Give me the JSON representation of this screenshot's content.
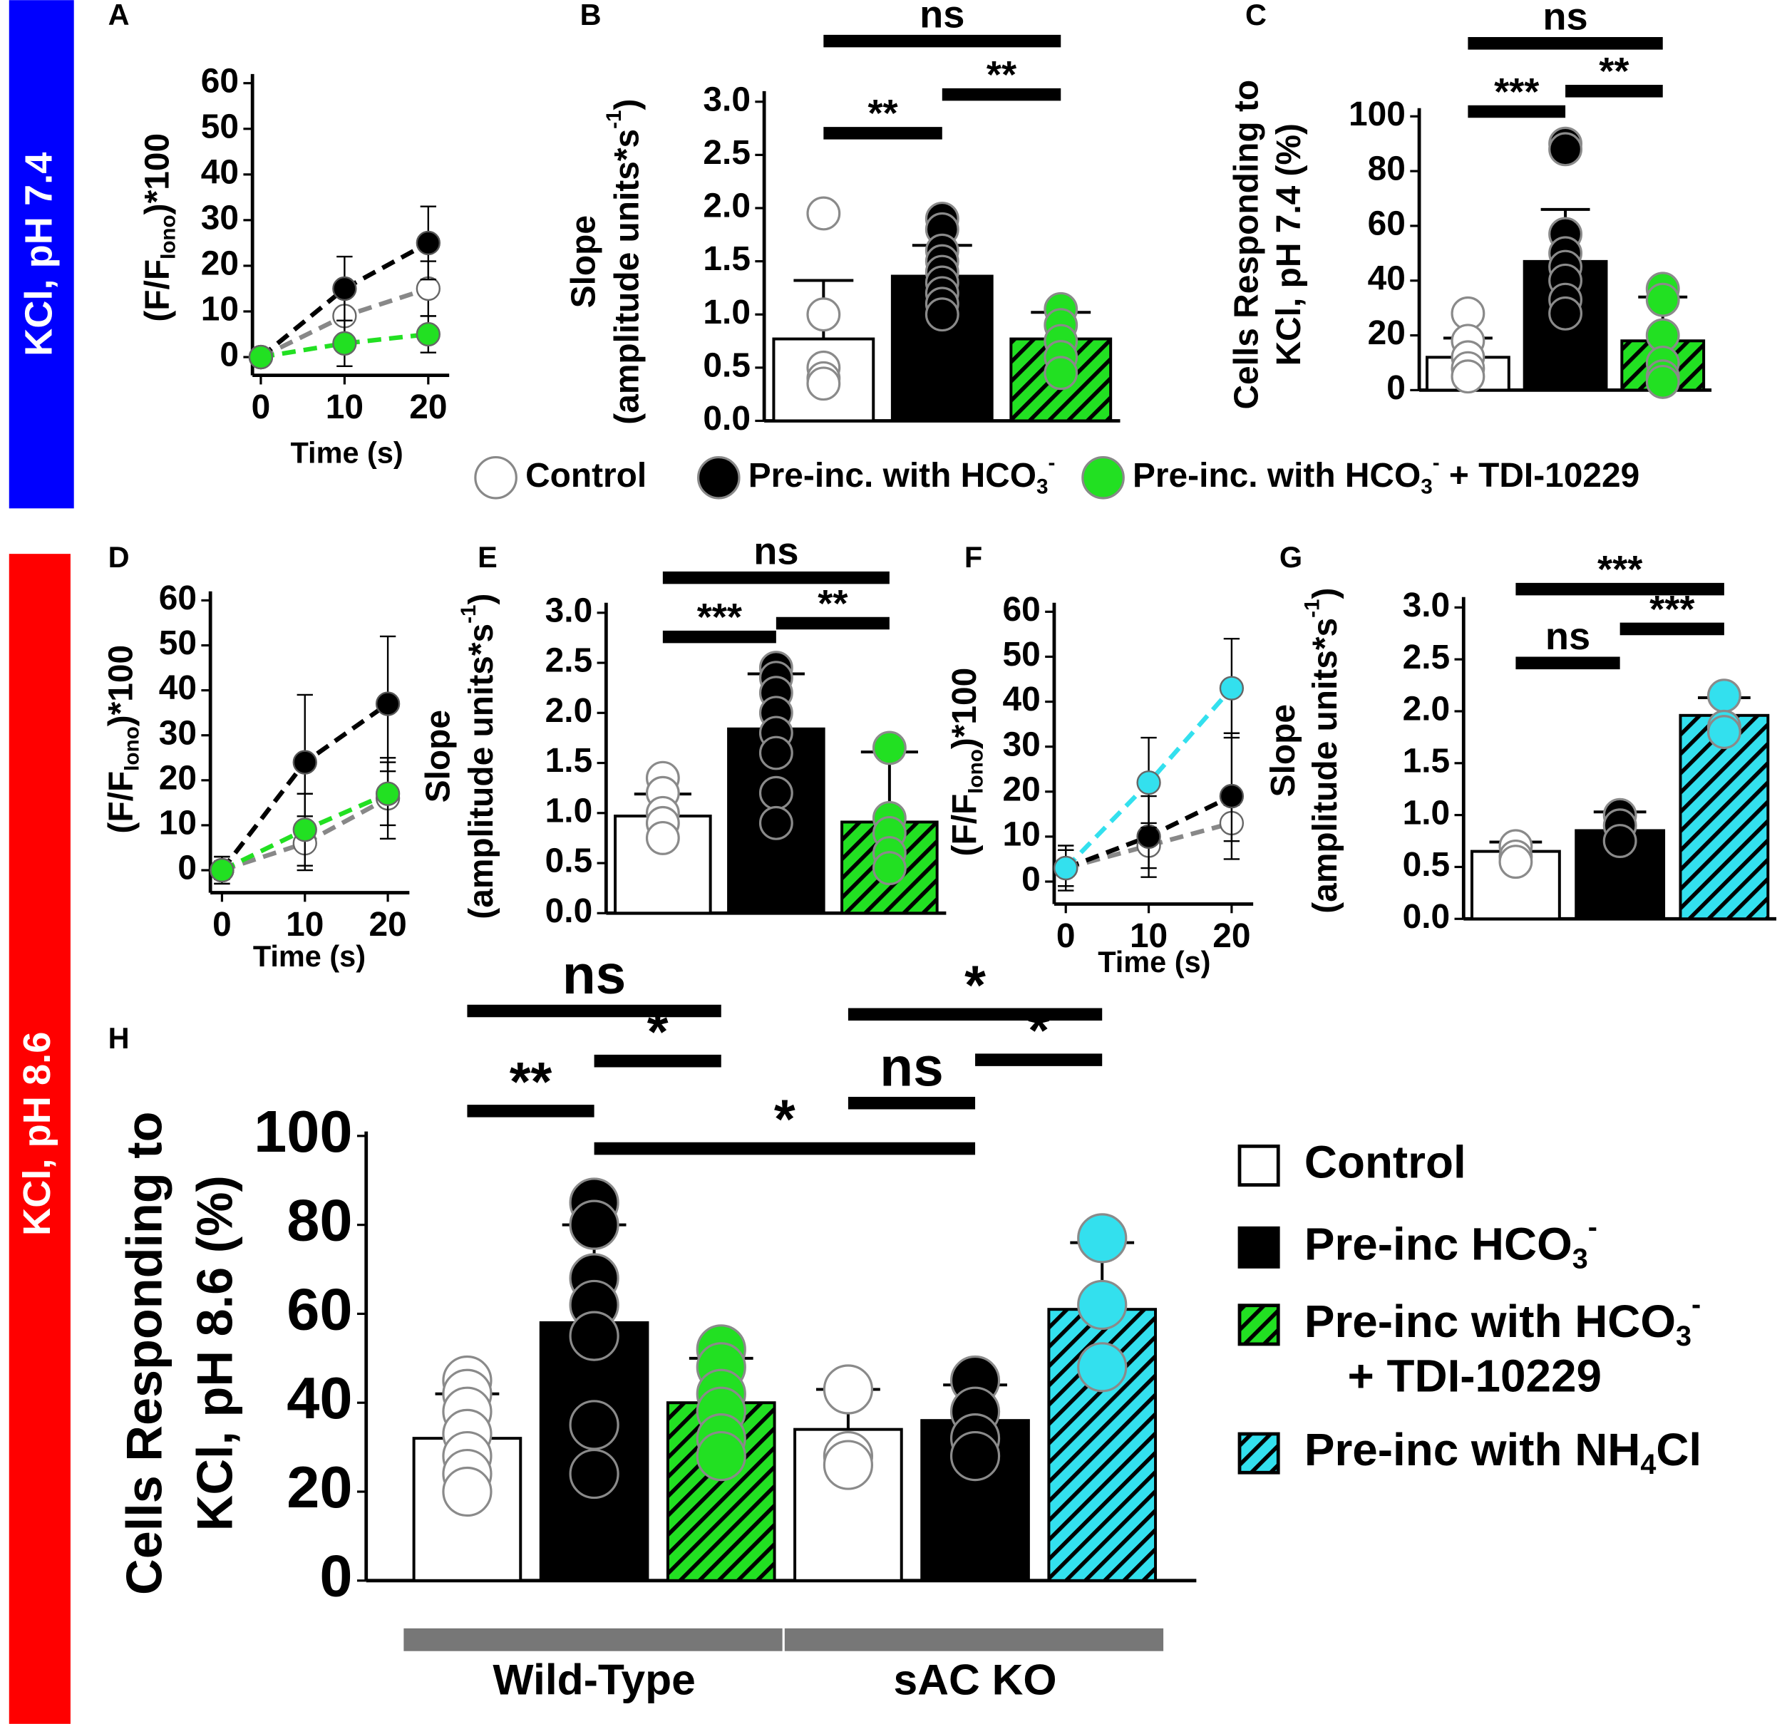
{
  "side_labels": [
    {
      "text": "KCl, pH 7.4",
      "color": "#0000ff"
    },
    {
      "text": "KCl, pH 8.6",
      "color": "#ff0000"
    }
  ],
  "legends": [
    {
      "marker": "circle",
      "entries": [
        {
          "color": "#ffffff",
          "parts": [
            {
              "text": "Control"
            }
          ]
        },
        {
          "color": "#000000",
          "parts": [
            {
              "text": "Pre-inc. with HCO"
            },
            {
              "text": "3",
              "script": "sub"
            },
            {
              "text": "-",
              "script": "sup"
            }
          ]
        },
        {
          "color": "#22e022",
          "parts": [
            {
              "text": "Pre-inc. with HCO"
            },
            {
              "text": "3",
              "script": "sub"
            },
            {
              "text": "-",
              "script": "sup"
            },
            {
              "text": " + TDI-10229"
            }
          ]
        }
      ]
    },
    {
      "marker": "square",
      "entries": [
        {
          "color": "#ffffff",
          "parts": [
            {
              "text": "Control"
            }
          ]
        },
        {
          "color": "#000000",
          "parts": [
            {
              "text": "Pre-inc HCO"
            },
            {
              "text": "3",
              "script": "sub"
            },
            {
              "text": "-",
              "script": "sup"
            }
          ]
        },
        {
          "color": "#22e022",
          "hatch": true,
          "parts": [
            {
              "text": "Pre-inc with HCO"
            },
            {
              "text": "3",
              "script": "sub"
            },
            {
              "text": "-",
              "script": "sup"
            }
          ],
          "line2": "+ TDI-10229"
        },
        {
          "color": "#33e0ee",
          "hatch": true,
          "parts": [
            {
              "text": "Pre-inc with NH"
            },
            {
              "text": "4",
              "script": "sub"
            },
            {
              "text": "Cl"
            }
          ]
        }
      ]
    }
  ],
  "chart_data": [
    {
      "type": "line",
      "panel": "A",
      "ylabel": [
        [
          {
            "text": "(F/F"
          },
          {
            "text": "Iono",
            "script": "sub"
          },
          {
            "text": ")*100"
          }
        ]
      ],
      "xlabel": "Time (s)",
      "x": [
        0,
        10,
        20
      ],
      "xlim": [
        -1,
        22.5
      ],
      "ylim": [
        -4,
        62
      ],
      "xticks": [
        0,
        10,
        20
      ],
      "yticks": [
        0,
        10,
        20,
        30,
        40,
        50,
        60
      ],
      "series": [
        {
          "color": "#ffffff",
          "line_color": "#888888",
          "values": [
            0,
            9,
            15
          ],
          "errors": [
            1,
            6,
            6
          ]
        },
        {
          "color": "#000000",
          "line_color": "#000000",
          "values": [
            0,
            15,
            25
          ],
          "errors": [
            1,
            7,
            8
          ]
        },
        {
          "color": "#22e022",
          "line_color": "#22e022",
          "values": [
            0,
            3,
            5
          ],
          "errors": [
            1,
            5,
            4
          ]
        }
      ]
    },
    {
      "type": "bar",
      "panel": "B",
      "ylabel": [
        [
          {
            "text": "Slope"
          }
        ],
        [
          {
            "text": "(amplitude units*s"
          },
          {
            "text": "-1",
            "script": "sup"
          },
          {
            "text": ")"
          }
        ]
      ],
      "ylim": [
        0,
        3.1
      ],
      "yticks": [
        {
          "value": 0,
          "label": "0.0"
        },
        0.5,
        {
          "value": 1,
          "label": "1.0"
        },
        1.5,
        {
          "value": 2,
          "label": "2.0"
        },
        2.5,
        {
          "value": 3,
          "label": "3.0"
        }
      ],
      "bars": [
        {
          "color": "#ffffff",
          "value": 0.77,
          "error": 0.55,
          "points": [
            1.95,
            1.0,
            0.5,
            0.4,
            0.35
          ]
        },
        {
          "color": "#000000",
          "value": 1.36,
          "error": 0.29,
          "points": [
            1.9,
            1.8,
            1.6,
            1.5,
            1.4,
            1.3,
            1.2,
            1.1,
            1.0
          ]
        },
        {
          "color": "#22e022",
          "hatch": true,
          "value": 0.77,
          "error": 0.25,
          "points": [
            1.05,
            0.9,
            0.75,
            0.6,
            0.45
          ]
        }
      ],
      "annotations": [
        {
          "text": "**",
          "from": 0,
          "to": 1
        },
        {
          "text": "**",
          "from": 1,
          "to": 2
        },
        {
          "text": "ns",
          "from": 0,
          "to": 2
        }
      ]
    },
    {
      "type": "bar",
      "panel": "C",
      "ylabel": [
        [
          {
            "text": "Cells Responding to"
          }
        ],
        [
          {
            "text": "KCl, pH 7.4 (%)"
          }
        ]
      ],
      "ylim": [
        0,
        103
      ],
      "yticks": [
        0,
        20,
        40,
        60,
        80,
        100
      ],
      "bars": [
        {
          "color": "#ffffff",
          "value": 12,
          "error": 7,
          "points": [
            28,
            18,
            12,
            8,
            5
          ]
        },
        {
          "color": "#000000",
          "value": 47,
          "error": 19,
          "points": [
            90,
            88,
            57,
            50,
            45,
            40,
            33,
            28
          ]
        },
        {
          "color": "#22e022",
          "hatch": true,
          "value": 18,
          "error": 16,
          "points": [
            37,
            33,
            20,
            10,
            5,
            3
          ]
        }
      ],
      "annotations": [
        {
          "text": "***",
          "from": 0,
          "to": 1
        },
        {
          "text": "**",
          "from": 1,
          "to": 2
        },
        {
          "text": "ns",
          "from": 0,
          "to": 2
        }
      ]
    },
    {
      "type": "line",
      "panel": "D",
      "ylabel": [
        [
          {
            "text": "(F/F"
          },
          {
            "text": "Iono",
            "script": "sub"
          },
          {
            "text": ")*100"
          }
        ]
      ],
      "xlabel": "Time (s)",
      "x": [
        0,
        10,
        20
      ],
      "xlim": [
        -1.4,
        22.6
      ],
      "ylim": [
        -5,
        62
      ],
      "xticks": [
        0,
        10,
        20
      ],
      "yticks": [
        0,
        10,
        20,
        30,
        40,
        50,
        60
      ],
      "series": [
        {
          "color": "#ffffff",
          "line_color": "#888888",
          "values": [
            0,
            6,
            16
          ],
          "errors": [
            3,
            6,
            9
          ]
        },
        {
          "color": "#000000",
          "line_color": "#000000",
          "values": [
            0,
            24,
            37
          ],
          "errors": [
            3,
            15,
            15
          ]
        },
        {
          "color": "#22e022",
          "line_color": "#22e022",
          "values": [
            0,
            9,
            17
          ],
          "errors": [
            2,
            8,
            7
          ]
        }
      ]
    },
    {
      "type": "bar",
      "panel": "E",
      "ylabel": [
        [
          {
            "text": "Slope"
          }
        ],
        [
          {
            "text": "(amplitude units*s"
          },
          {
            "text": "-1",
            "script": "sup"
          },
          {
            "text": ")"
          }
        ]
      ],
      "ylim": [
        0,
        3.1
      ],
      "yticks": [
        {
          "value": 0,
          "label": "0.0"
        },
        0.5,
        {
          "value": 1,
          "label": "1.0"
        },
        1.5,
        {
          "value": 2,
          "label": "2.0"
        },
        2.5,
        {
          "value": 3,
          "label": "3.0"
        }
      ],
      "bars": [
        {
          "color": "#ffffff",
          "value": 0.97,
          "error": 0.22,
          "points": [
            1.35,
            1.2,
            1.0,
            0.9,
            0.75
          ]
        },
        {
          "color": "#000000",
          "value": 1.84,
          "error": 0.55,
          "points": [
            2.45,
            2.35,
            2.2,
            2.0,
            1.8,
            1.6,
            1.2,
            0.9
          ]
        },
        {
          "color": "#22e022",
          "hatch": true,
          "value": 0.91,
          "error": 0.7,
          "points": [
            1.65,
            0.95,
            0.8,
            0.6,
            0.45
          ]
        }
      ],
      "annotations": [
        {
          "text": "***",
          "from": 0,
          "to": 1
        },
        {
          "text": "**",
          "from": 1,
          "to": 2
        },
        {
          "text": "ns",
          "from": 0,
          "to": 2
        }
      ]
    },
    {
      "type": "line",
      "panel": "F",
      "ylabel": [
        [
          {
            "text": "(F/F"
          },
          {
            "text": "Iono",
            "script": "sub"
          },
          {
            "text": ")*100"
          }
        ]
      ],
      "xlabel": "Time (s)",
      "x": [
        0,
        10,
        20
      ],
      "xlim": [
        -1.4,
        22.6
      ],
      "ylim": [
        -5,
        62
      ],
      "xticks": [
        0,
        10,
        20
      ],
      "yticks": [
        0,
        10,
        20,
        30,
        40,
        50,
        60
      ],
      "series": [
        {
          "color": "#ffffff",
          "line_color": "#888888",
          "values": [
            3,
            8,
            13
          ],
          "errors": [
            4,
            5,
            4
          ]
        },
        {
          "color": "#000000",
          "line_color": "#000000",
          "values": [
            3,
            10,
            19
          ],
          "errors": [
            5,
            9,
            14
          ]
        },
        {
          "color": "#33e0ee",
          "line_color": "#33e0ee",
          "values": [
            3,
            22,
            43
          ],
          "errors": [
            4,
            10,
            11
          ]
        }
      ]
    },
    {
      "type": "bar",
      "panel": "G",
      "ylabel": [
        [
          {
            "text": "Slope"
          }
        ],
        [
          {
            "text": "(amplitude units*s"
          },
          {
            "text": "-1",
            "script": "sup"
          },
          {
            "text": ")"
          }
        ]
      ],
      "ylim": [
        0,
        3.1
      ],
      "yticks": [
        {
          "value": 0,
          "label": "0.0"
        },
        0.5,
        {
          "value": 1,
          "label": "1.0"
        },
        1.5,
        {
          "value": 2,
          "label": "2.0"
        },
        2.5,
        {
          "value": 3,
          "label": "3.0"
        }
      ],
      "bars": [
        {
          "color": "#ffffff",
          "value": 0.65,
          "error": 0.09,
          "points": [
            0.7,
            0.6,
            0.55
          ]
        },
        {
          "color": "#000000",
          "value": 0.85,
          "error": 0.18,
          "points": [
            1.0,
            0.9,
            0.75
          ]
        },
        {
          "color": "#33e0ee",
          "hatch": true,
          "value": 1.96,
          "error": 0.17,
          "points": [
            2.15,
            1.85,
            1.8
          ]
        }
      ],
      "annotations": [
        {
          "text": "ns",
          "from": 0,
          "to": 1
        },
        {
          "text": "***",
          "from": 1,
          "to": 2
        },
        {
          "text": "***",
          "from": 0,
          "to": 2
        }
      ]
    },
    {
      "type": "bar",
      "panel": "H",
      "ylabel": [
        [
          {
            "text": "Cells Responding to"
          }
        ],
        [
          {
            "text": "KCl, pH 8.6 (%)"
          }
        ]
      ],
      "ylim": [
        0,
        101
      ],
      "yticks": [
        0,
        20,
        40,
        60,
        80,
        100
      ],
      "bars": [
        {
          "color": "#ffffff",
          "value": 32,
          "error": 10,
          "points": [
            45,
            42,
            38,
            33,
            28,
            24,
            20
          ]
        },
        {
          "color": "#000000",
          "value": 58,
          "error": 22,
          "points": [
            85,
            80,
            68,
            62,
            55,
            35,
            24
          ]
        },
        {
          "color": "#22e022",
          "hatch": true,
          "value": 40,
          "error": 10,
          "points": [
            52,
            48,
            42,
            38,
            32,
            28
          ]
        },
        {
          "color": "#ffffff",
          "value": 34,
          "error": 9,
          "points": [
            43,
            28,
            26
          ]
        },
        {
          "color": "#000000",
          "value": 36,
          "error": 8,
          "points": [
            45,
            38,
            32,
            28
          ]
        },
        {
          "color": "#33e0ee",
          "hatch": true,
          "value": 61,
          "error": 15,
          "points": [
            77,
            62,
            48
          ]
        }
      ],
      "annotations": [
        {
          "text": "**",
          "from": 0,
          "to": 1
        },
        {
          "text": "*",
          "from": 1,
          "to": 2
        },
        {
          "text": "ns",
          "from": 0,
          "to": 2
        },
        {
          "text": "*",
          "from": 1,
          "to": 4
        },
        {
          "text": "ns",
          "from": 3,
          "to": 4
        },
        {
          "text": "*",
          "from": 4,
          "to": 5
        },
        {
          "text": "*",
          "from": 3,
          "to": 5
        }
      ],
      "group_labels": [
        {
          "text": "Wild-Type",
          "from": 0,
          "to": 2
        },
        {
          "text": "sAC KO",
          "from": 3,
          "to": 5
        }
      ]
    }
  ]
}
